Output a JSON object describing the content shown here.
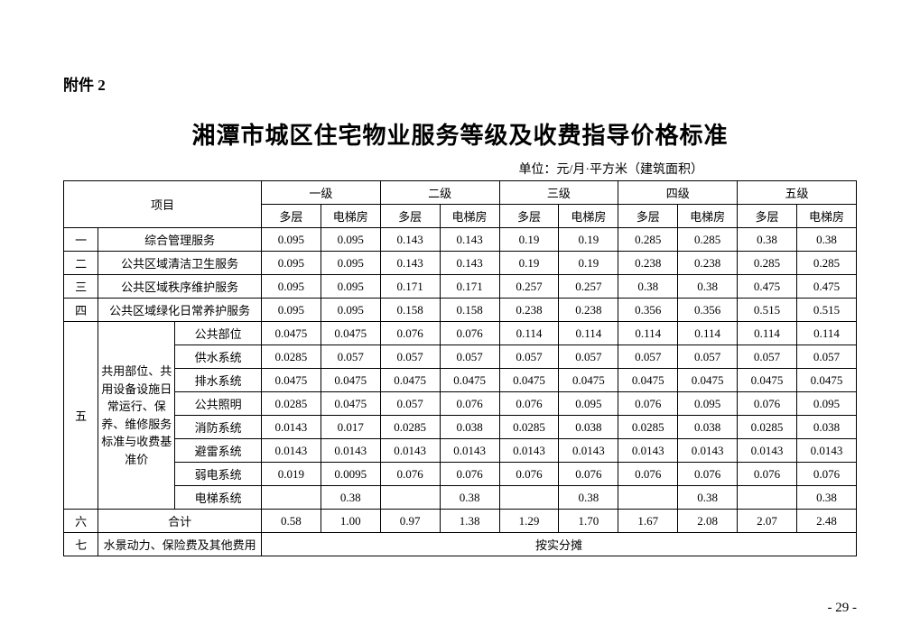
{
  "attachment_label": "附件 2",
  "main_title": "湘潭市城区住宅物业服务等级及收费指导价格标准",
  "unit_label": "单位：元/月·平方米（建筑面积）",
  "page_number": "- 29 -",
  "headers": {
    "item": "项目",
    "levels": [
      "一级",
      "二级",
      "三级",
      "四级",
      "五级"
    ],
    "sub": [
      "多层",
      "电梯房"
    ]
  },
  "rows_simple": [
    {
      "num": "一",
      "name": "综合管理服务",
      "vals": [
        "0.095",
        "0.095",
        "0.143",
        "0.143",
        "0.19",
        "0.19",
        "0.285",
        "0.285",
        "0.38",
        "0.38"
      ]
    },
    {
      "num": "二",
      "name": "公共区域清洁卫生服务",
      "vals": [
        "0.095",
        "0.095",
        "0.143",
        "0.143",
        "0.19",
        "0.19",
        "0.238",
        "0.238",
        "0.285",
        "0.285"
      ]
    },
    {
      "num": "三",
      "name": "公共区域秩序维护服务",
      "vals": [
        "0.095",
        "0.095",
        "0.171",
        "0.171",
        "0.257",
        "0.257",
        "0.38",
        "0.38",
        "0.475",
        "0.475"
      ]
    },
    {
      "num": "四",
      "name": "公共区域绿化日常养护服务",
      "vals": [
        "0.095",
        "0.095",
        "0.158",
        "0.158",
        "0.238",
        "0.238",
        "0.356",
        "0.356",
        "0.515",
        "0.515"
      ]
    }
  ],
  "group5": {
    "num": "五",
    "category": "共用部位、共用设备设施日常运行、保养、维修服务标准与收费基准价",
    "items": [
      {
        "name": "公共部位",
        "vals": [
          "0.0475",
          "0.0475",
          "0.076",
          "0.076",
          "0.114",
          "0.114",
          "0.114",
          "0.114",
          "0.114",
          "0.114"
        ]
      },
      {
        "name": "供水系统",
        "vals": [
          "0.0285",
          "0.057",
          "0.057",
          "0.057",
          "0.057",
          "0.057",
          "0.057",
          "0.057",
          "0.057",
          "0.057"
        ]
      },
      {
        "name": "排水系统",
        "vals": [
          "0.0475",
          "0.0475",
          "0.0475",
          "0.0475",
          "0.0475",
          "0.0475",
          "0.0475",
          "0.0475",
          "0.0475",
          "0.0475"
        ]
      },
      {
        "name": "公共照明",
        "vals": [
          "0.0285",
          "0.0475",
          "0.057",
          "0.076",
          "0.076",
          "0.095",
          "0.076",
          "0.095",
          "0.076",
          "0.095"
        ]
      },
      {
        "name": "消防系统",
        "vals": [
          "0.0143",
          "0.017",
          "0.0285",
          "0.038",
          "0.0285",
          "0.038",
          "0.0285",
          "0.038",
          "0.0285",
          "0.038"
        ]
      },
      {
        "name": "避雷系统",
        "vals": [
          "0.0143",
          "0.0143",
          "0.0143",
          "0.0143",
          "0.0143",
          "0.0143",
          "0.0143",
          "0.0143",
          "0.0143",
          "0.0143"
        ]
      },
      {
        "name": "弱电系统",
        "vals": [
          "0.019",
          "0.0095",
          "0.076",
          "0.076",
          "0.076",
          "0.076",
          "0.076",
          "0.076",
          "0.076",
          "0.076"
        ]
      },
      {
        "name": "电梯系统",
        "vals": [
          "",
          "0.38",
          "",
          "0.38",
          "",
          "0.38",
          "",
          "0.38",
          "",
          "0.38"
        ]
      }
    ]
  },
  "row_total": {
    "num": "六",
    "name": "合计",
    "vals": [
      "0.58",
      "1.00",
      "0.97",
      "1.38",
      "1.29",
      "1.70",
      "1.67",
      "2.08",
      "2.07",
      "2.48"
    ]
  },
  "row_seven": {
    "num": "七",
    "name": "水景动力、保险费及其他费用",
    "note": "按实分摊"
  }
}
